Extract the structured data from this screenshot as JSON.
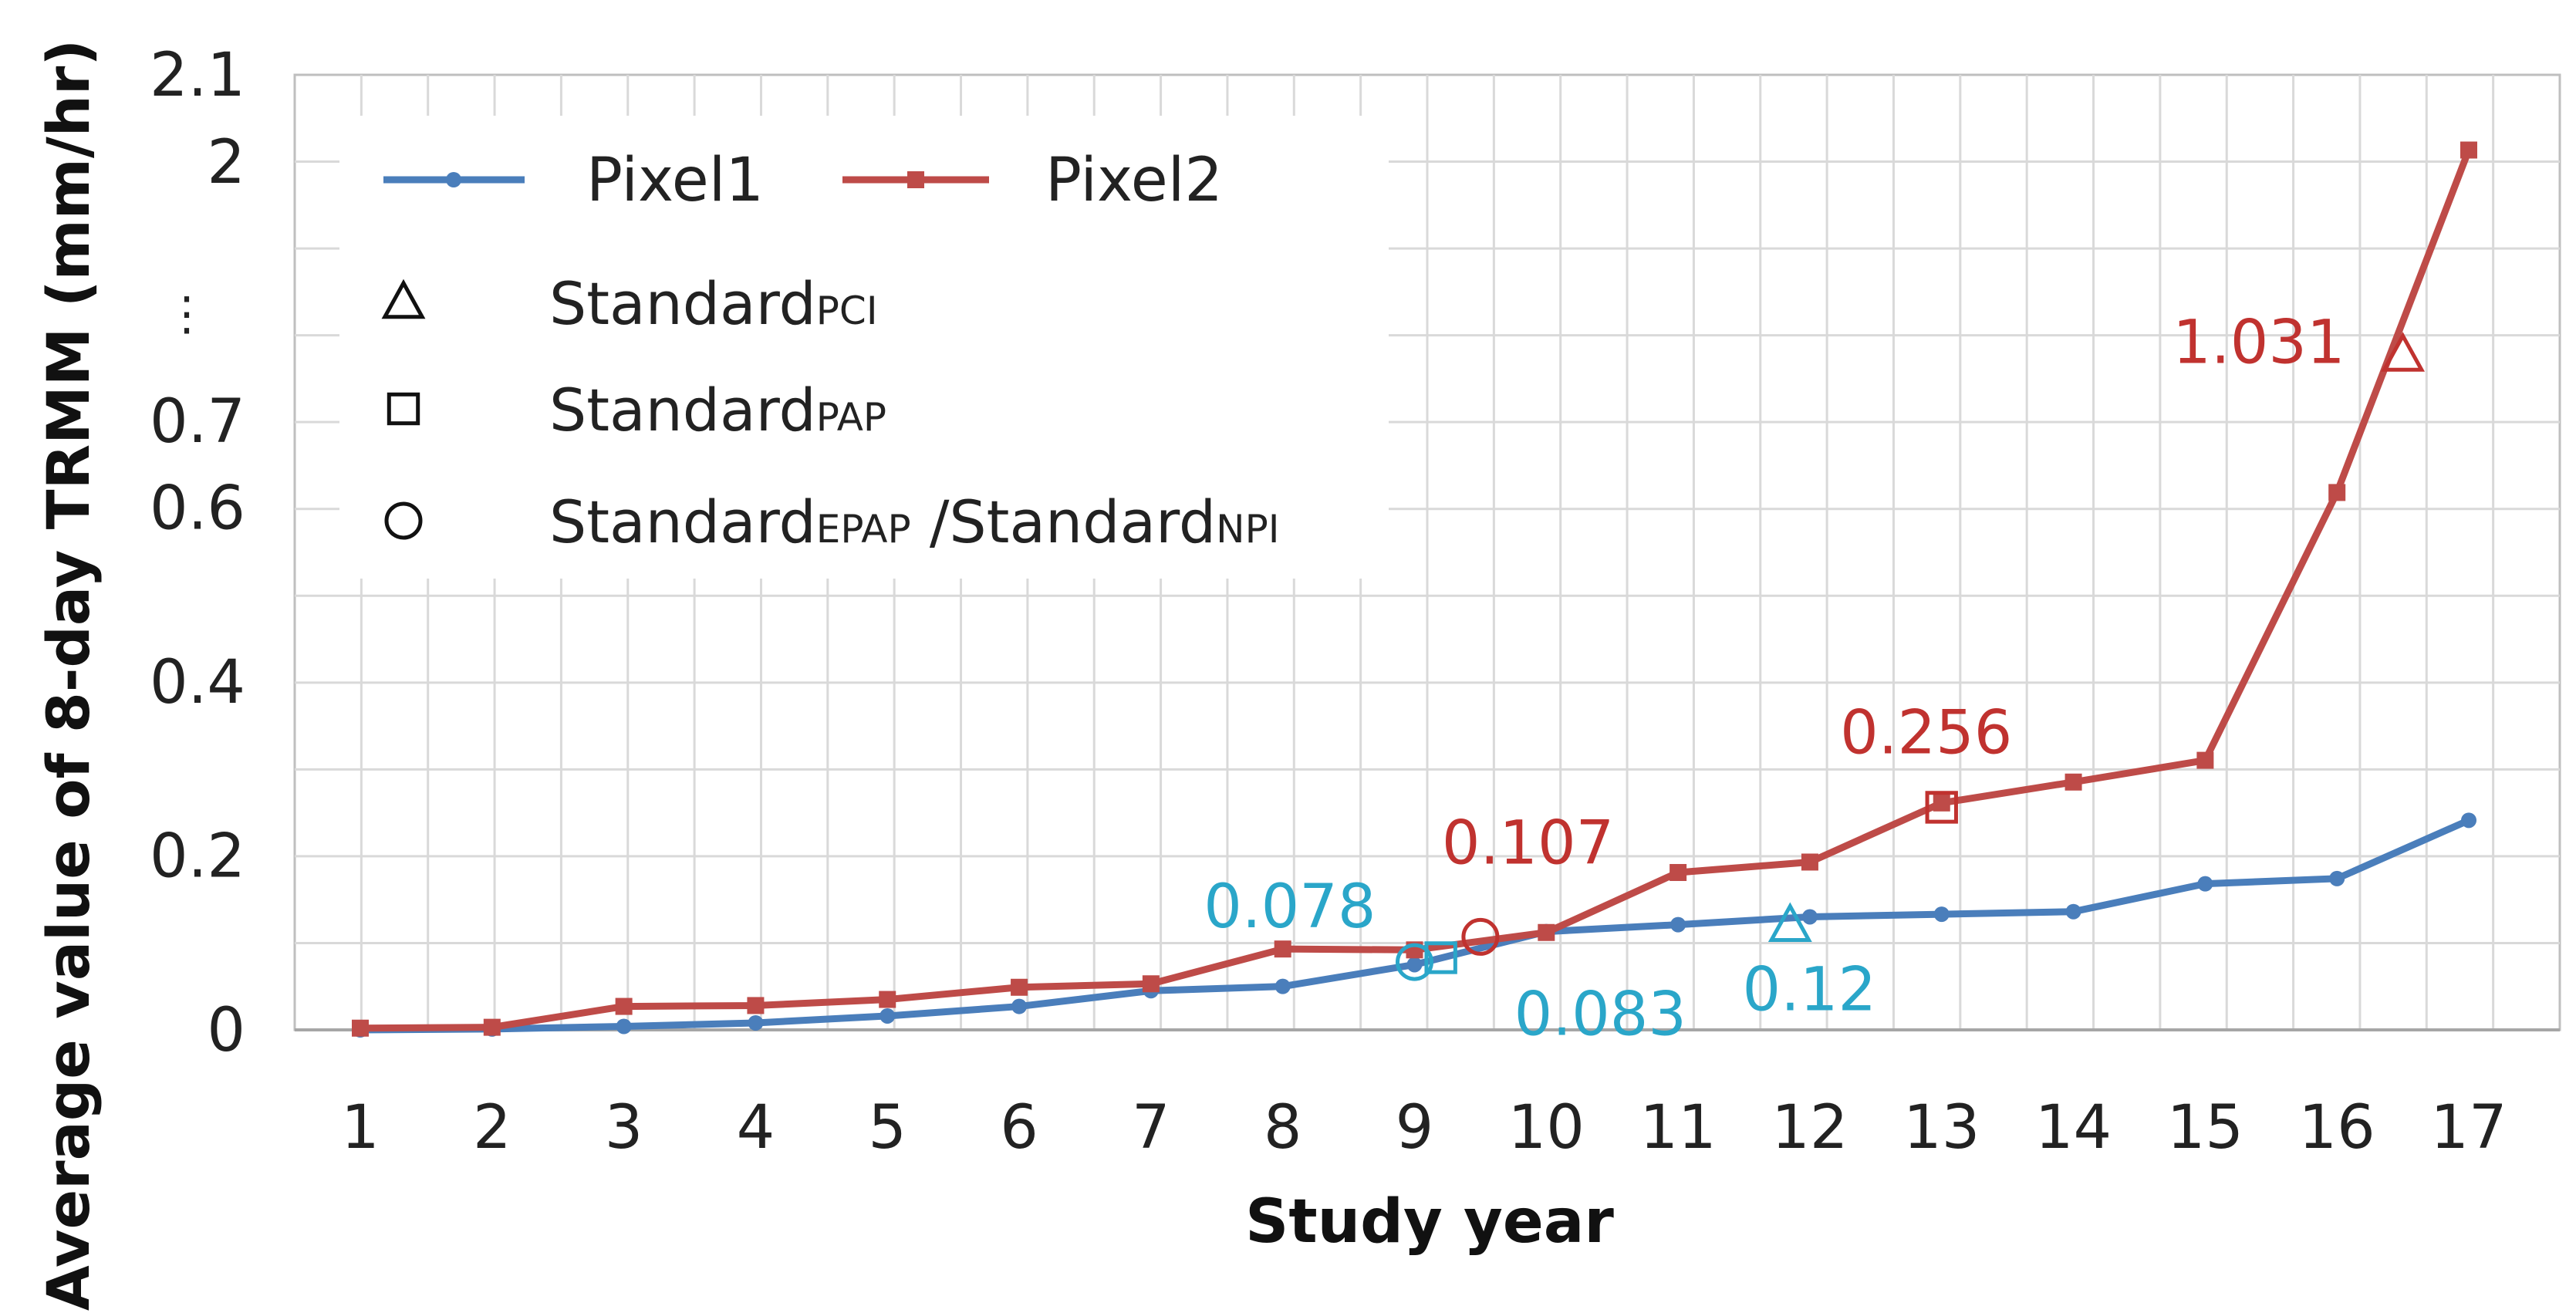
{
  "chart_data": {
    "type": "line",
    "xlabel": "Study year",
    "ylabel": "Average value of 8-day TRMM (mm/hr)",
    "categories": [
      1,
      2,
      3,
      4,
      5,
      6,
      7,
      8,
      9,
      10,
      11,
      12,
      13,
      14,
      15,
      16,
      17
    ],
    "xtick_labels": [
      "1",
      "2",
      "3",
      "4",
      "5",
      "6",
      "7",
      "8",
      "9",
      "10",
      "11",
      "12",
      "13",
      "14",
      "15",
      "16",
      "17"
    ],
    "ytick_labels": [
      "0",
      "0.2",
      "0.4",
      "0.6",
      "0.7",
      "⋮",
      "2",
      "2.1"
    ],
    "y_axis_note": "broken axis: scale jumps from 0.7 to 2",
    "grid": true,
    "series": [
      {
        "name": "Pixel1",
        "color": "#4a7ebb",
        "marker": "circle",
        "values": [
          0.0,
          0.001,
          0.004,
          0.008,
          0.016,
          0.027,
          0.045,
          0.05,
          0.075,
          0.113,
          0.121,
          0.13,
          0.133,
          0.136,
          0.168,
          0.174,
          0.241
        ]
      },
      {
        "name": "Pixel2",
        "color": "#be4b48",
        "marker": "square",
        "values": [
          0.002,
          0.003,
          0.027,
          0.028,
          0.035,
          0.049,
          0.053,
          0.093,
          0.092,
          0.112,
          0.181,
          0.193,
          0.261,
          0.285,
          0.31,
          0.618,
          2.06
        ]
      }
    ],
    "legend": {
      "placement": "top-left",
      "entries": [
        {
          "label": "Pixel1",
          "kind": "line",
          "color": "#4a7ebb"
        },
        {
          "label": "Pixel2",
          "kind": "line",
          "color": "#be4b48"
        },
        {
          "label": "Standard",
          "sub": "PCI",
          "kind": "triangle"
        },
        {
          "label": "Standard",
          "sub": "PAP",
          "kind": "square"
        },
        {
          "label": "Standard",
          "sub": "EPAP",
          "label2": " /Standard",
          "sub2": "NPI",
          "kind": "circle"
        }
      ]
    },
    "standards": [
      {
        "series": "Pixel1",
        "marker": "circle",
        "x": 9.0,
        "y": 0.078,
        "label": "0.078",
        "color": "#2aa6c9",
        "label_anchor": "above-left"
      },
      {
        "series": "Pixel1",
        "marker": "square",
        "x": 9.2,
        "y": 0.083,
        "label": "0.083",
        "color": "#2aa6c9",
        "label_anchor": "below-right"
      },
      {
        "series": "Pixel1",
        "marker": "triangle",
        "x": 11.85,
        "y": 0.12,
        "label": "0.12",
        "color": "#2aa6c9",
        "label_anchor": "below"
      },
      {
        "series": "Pixel2",
        "marker": "circle",
        "x": 9.5,
        "y": 0.107,
        "label": "0.107",
        "color": "#c0322f",
        "label_anchor": "above-right"
      },
      {
        "series": "Pixel2",
        "marker": "square",
        "x": 13.0,
        "y": 0.256,
        "label": "0.256",
        "color": "#c0322f",
        "label_anchor": "above"
      },
      {
        "series": "Pixel2",
        "marker": "triangle",
        "x": 16.5,
        "y": 1.031,
        "label": "1.031",
        "color": "#c0322f",
        "label_anchor": "left"
      }
    ]
  }
}
